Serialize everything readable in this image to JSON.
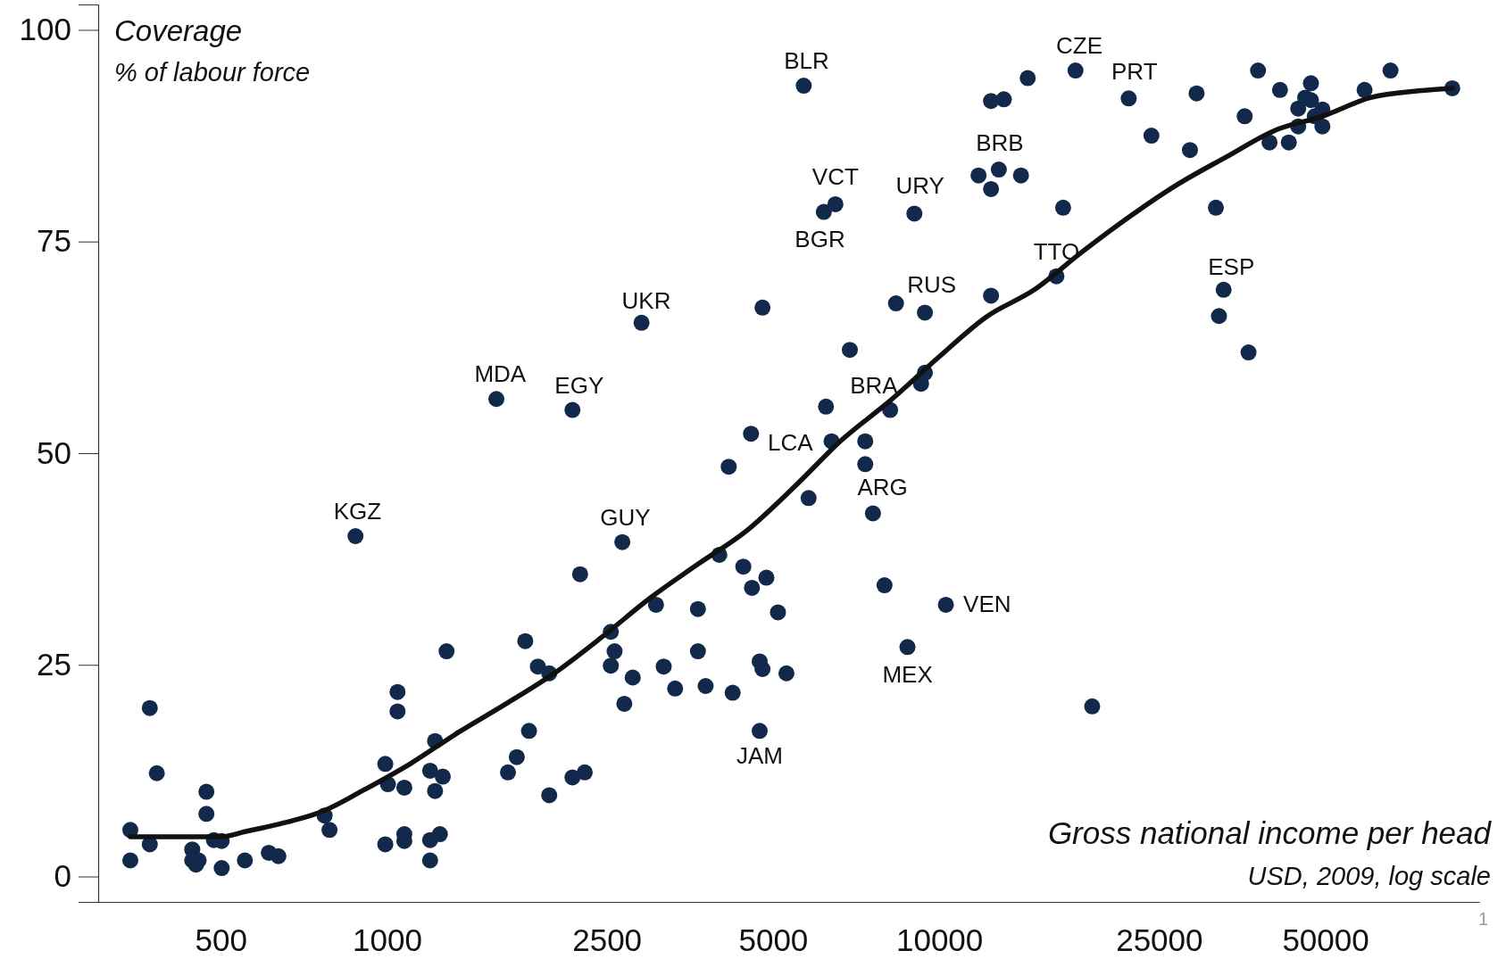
{
  "chart_data": {
    "type": "scatter",
    "title": "Coverage",
    "subtitle": "% of labour force",
    "xlabel": "Gross national income per head",
    "log": "x",
    "grid": false,
    "xlim": [
      300,
      95000
    ],
    "xticks": [
      500,
      1000,
      2500,
      5000,
      10000,
      25000,
      50000
    ],
    "ylim": [
      -3,
      103
    ],
    "yticks": [
      0,
      25,
      50,
      75,
      100
    ],
    "series": [
      {
        "marker": "circle",
        "color": "#13294b",
        "x": [
          343,
          343,
          372,
          372,
          383,
          444,
          444,
          451,
          456,
          471,
          471,
          486,
          502,
          502,
          553,
          611,
          636,
          771,
          787,
          877,
          993,
          1004,
          993,
          1045,
          1045,
          1075,
          1075,
          1075,
          1197,
          1197,
          1222,
          1222,
          1247,
          1197,
          1282,
          1262,
          1578,
          1656,
          1718,
          1780,
          1808,
          1876,
          1967,
          1967,
          2167,
          2167,
          2281,
          2237,
          2543,
          2543,
          2583,
          2668,
          2690,
          2786,
          2890,
          3070,
          3170,
          3325,
          3656,
          3656,
          3776,
          3997,
          4157,
          4226,
          4418,
          4562,
          4580,
          4730,
          4730,
          4786,
          4786,
          4864,
          5105,
          5288,
          5684,
          5800,
          6180,
          6486,
          6236,
          6383,
          6888,
          7345,
          7345,
          7585,
          7960,
          8150,
          8350,
          8760,
          9015,
          9268,
          9420,
          9420,
          10280,
          11780,
          12410,
          12410,
          13090,
          12820,
          14060,
          14460,
          12410,
          16300,
          16760,
          17650,
          18920,
          22030,
          24220,
          28440,
          29240,
          31690,
          32730,
          32100,
          36310,
          35730,
          37780,
          39630,
          41400,
          42950,
          44670,
          45980,
          47100,
          47100,
          44670,
          49400,
          49400,
          47860,
          58900,
          65630,
          84900
        ],
        "values": [
          5.5,
          1.9,
          19.9,
          3.8,
          12.2,
          3.2,
          1.9,
          1.4,
          1.9,
          10.0,
          7.4,
          4.3,
          4.2,
          1.0,
          1.9,
          2.8,
          2.4,
          7.2,
          5.5,
          40.2,
          13.3,
          10.9,
          3.8,
          21.8,
          19.5,
          10.5,
          4.2,
          5.0,
          4.3,
          1.9,
          16.0,
          10.1,
          5.0,
          12.5,
          26.6,
          11.8,
          56.4,
          12.3,
          14.1,
          27.8,
          17.2,
          24.8,
          24.0,
          9.6,
          55.1,
          11.7,
          12.3,
          35.7,
          28.9,
          24.9,
          26.6,
          39.5,
          20.4,
          23.5,
          65.4,
          32.1,
          24.8,
          22.2,
          31.6,
          26.6,
          22.5,
          38.0,
          48.4,
          21.7,
          36.6,
          52.3,
          34.1,
          25.4,
          17.2,
          67.2,
          24.5,
          35.3,
          31.2,
          24.0,
          93.4,
          44.7,
          78.5,
          79.4,
          55.5,
          51.4,
          62.2,
          51.4,
          48.7,
          42.9,
          34.4,
          55.1,
          67.7,
          27.1,
          78.3,
          58.2,
          59.5,
          66.6,
          32.1,
          82.8,
          91.6,
          81.2,
          91.8,
          83.5,
          82.8,
          94.3,
          68.6,
          70.9,
          79.0,
          95.2,
          20.1,
          91.9,
          87.5,
          85.8,
          92.5,
          79.0,
          69.3,
          66.2,
          61.9,
          89.8,
          95.2,
          86.7,
          92.9,
          86.7,
          90.7,
          92.0,
          93.7,
          91.7,
          88.6,
          90.6,
          88.6,
          89.8,
          92.9,
          95.2,
          93.1
        ]
      },
      {
        "type": "line",
        "color": "#111111",
        "line_style": "solid",
        "x": [
          343,
          444,
          502,
          553,
          629,
          771,
          901,
          1101,
          1345,
          1643,
          2008,
          2452,
          2997,
          3658,
          4470,
          5460,
          6670,
          8150,
          9960,
          12170,
          14860,
          18160,
          22180,
          27100,
          33110,
          40450,
          49400,
          60390,
          73800,
          84900
        ],
        "values": [
          4.7,
          4.7,
          4.7,
          5.3,
          6.1,
          7.8,
          10.1,
          13.3,
          17.0,
          20.4,
          24.0,
          28.3,
          32.9,
          36.9,
          40.8,
          46.0,
          51.6,
          56.2,
          61.3,
          66.1,
          69.3,
          73.8,
          78.0,
          81.8,
          85.0,
          88.1,
          89.8,
          92.0,
          92.8,
          93.1
        ]
      }
    ],
    "annotations": [
      {
        "text": "KGZ",
        "x": 877,
        "y": 40.2
      },
      {
        "text": "MDA",
        "x": 1578,
        "y": 56.4
      },
      {
        "text": "EGY",
        "x": 2167,
        "y": 55.1
      },
      {
        "text": "UKR",
        "x": 2890,
        "y": 65.4
      },
      {
        "text": "GUY",
        "x": 2668,
        "y": 39.5
      },
      {
        "text": "JAM",
        "x": 4730,
        "y": 17.2
      },
      {
        "text": "LCA",
        "x": 6383,
        "y": 51.4
      },
      {
        "text": "BLR",
        "x": 5684,
        "y": 93.4
      },
      {
        "text": "VCT",
        "x": 6486,
        "y": 79.4
      },
      {
        "text": "BGR",
        "x": 6180,
        "y": 78.5
      },
      {
        "text": "BRA",
        "x": 8150,
        "y": 55.1
      },
      {
        "text": "ARG",
        "x": 7585,
        "y": 42.9
      },
      {
        "text": "MEX",
        "x": 8760,
        "y": 27.1
      },
      {
        "text": "URY",
        "x": 9015,
        "y": 78.3
      },
      {
        "text": "RUS",
        "x": 9420,
        "y": 66.6
      },
      {
        "text": "VEN",
        "x": 10280,
        "y": 32.1
      },
      {
        "text": "BRB",
        "x": 12820,
        "y": 83.5
      },
      {
        "text": "TTO",
        "x": 16300,
        "y": 70.9
      },
      {
        "text": "CZE",
        "x": 17650,
        "y": 95.2
      },
      {
        "text": "PRT",
        "x": 22030,
        "y": 91.9
      },
      {
        "text": "ESP",
        "x": 32730,
        "y": 69.3
      },
      "USD, 2009, log scale",
      "1"
    ]
  }
}
